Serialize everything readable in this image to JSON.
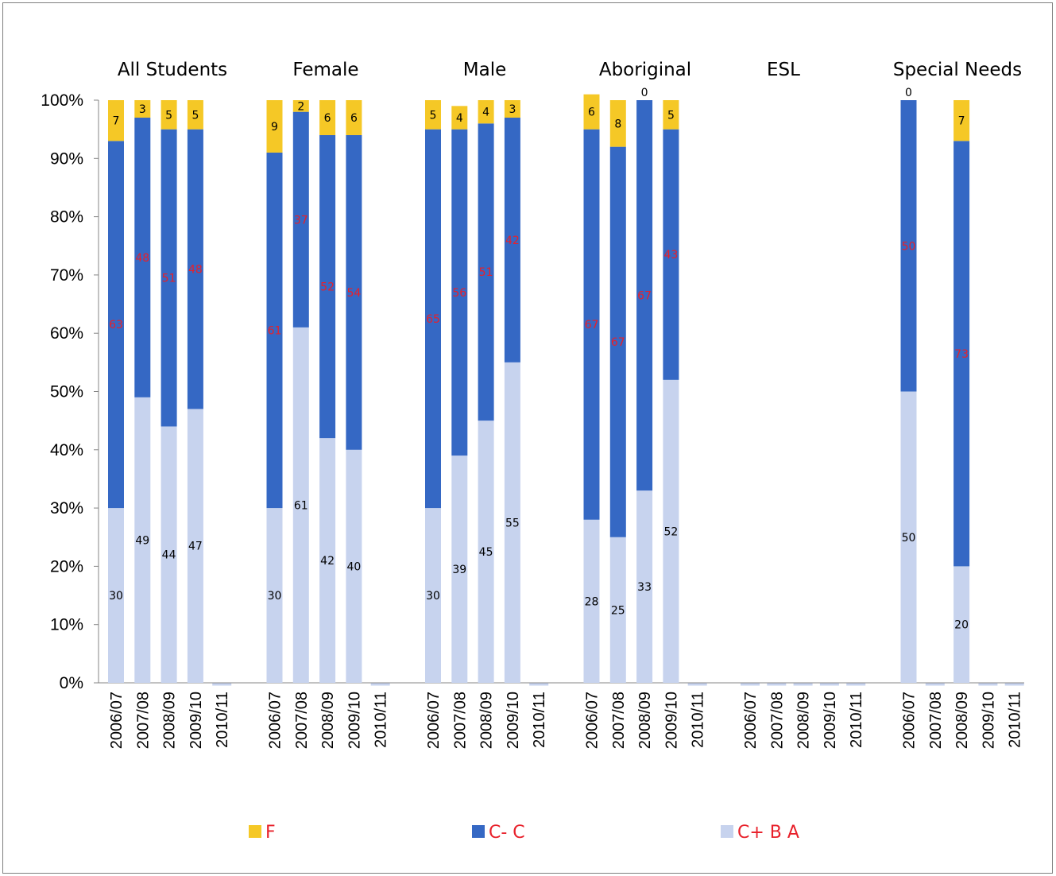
{
  "chart_data": {
    "type": "bar",
    "stacked": true,
    "percent": true,
    "groups": [
      "All Students",
      "Female",
      "Male",
      "Aboriginal",
      "ESL",
      "Special Needs"
    ],
    "categories": [
      "2006/07",
      "2007/08",
      "2008/09",
      "2009/10",
      "2010/11"
    ],
    "yticks": [
      "0%",
      "10%",
      "20%",
      "30%",
      "40%",
      "50%",
      "60%",
      "70%",
      "80%",
      "90%",
      "100%"
    ],
    "ylim": [
      0,
      100
    ],
    "series": [
      {
        "name": "C+ B A",
        "color": "#c7d3ee",
        "label_color": "#000000",
        "values": [
          [
            30,
            49,
            44,
            47,
            null
          ],
          [
            30,
            61,
            42,
            40,
            null
          ],
          [
            30,
            39,
            45,
            55,
            null
          ],
          [
            28,
            25,
            33,
            52,
            null
          ],
          [
            null,
            null,
            null,
            null,
            null
          ],
          [
            50,
            null,
            20,
            null,
            null
          ]
        ]
      },
      {
        "name": "C- C",
        "color": "#3568c4",
        "label_color": "#e8202a",
        "values": [
          [
            63,
            48,
            51,
            48,
            null
          ],
          [
            61,
            37,
            52,
            54,
            null
          ],
          [
            65,
            56,
            51,
            42,
            null
          ],
          [
            67,
            67,
            67,
            43,
            null
          ],
          [
            null,
            null,
            null,
            null,
            null
          ],
          [
            50,
            null,
            73,
            null,
            null
          ]
        ]
      },
      {
        "name": "F",
        "color": "#f5c826",
        "label_color": "#000000",
        "values": [
          [
            7,
            3,
            5,
            5,
            null
          ],
          [
            9,
            2,
            6,
            6,
            null
          ],
          [
            5,
            4,
            4,
            3,
            null
          ],
          [
            6,
            8,
            0,
            5,
            null
          ],
          [
            null,
            null,
            null,
            null,
            null
          ],
          [
            0,
            null,
            7,
            null,
            null
          ]
        ]
      }
    ],
    "legend": [
      "F",
      "C- C",
      "C+ B A"
    ],
    "legend_position": "bottom",
    "grid": false
  }
}
